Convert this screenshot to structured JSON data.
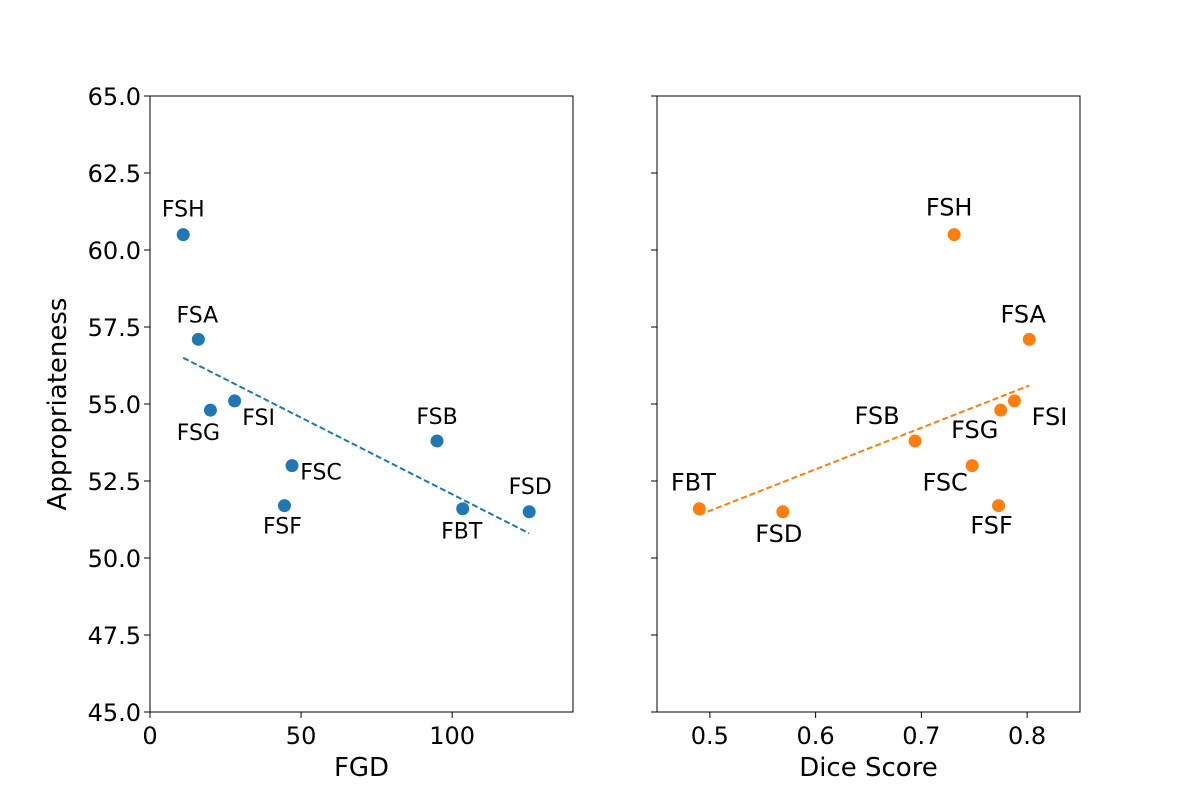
{
  "chart_data": [
    {
      "type": "scatter",
      "xlabel": "FGD",
      "ylabel": "Appropriateness",
      "xlim": [
        0,
        140
      ],
      "ylim": [
        45.0,
        65.0
      ],
      "xticks": [
        0,
        50,
        100
      ],
      "xtick_labels": [
        "0",
        "50",
        "100"
      ],
      "yticks": [
        45.0,
        47.5,
        50.0,
        52.5,
        55.0,
        57.5,
        60.0,
        62.5,
        65.0
      ],
      "ytick_labels": [
        "45.0",
        "47.5",
        "50.0",
        "52.5",
        "55.0",
        "57.5",
        "60.0",
        "62.5",
        "65.0"
      ],
      "color": "#1f77b4",
      "points": [
        {
          "label": "FSH",
          "x": 11,
          "y": 60.5
        },
        {
          "label": "FSA",
          "x": 16,
          "y": 57.1
        },
        {
          "label": "FSG",
          "x": 20,
          "y": 54.8
        },
        {
          "label": "FSI",
          "x": 28,
          "y": 55.1
        },
        {
          "label": "FSC",
          "x": 47,
          "y": 53.0
        },
        {
          "label": "FSF",
          "x": 44.5,
          "y": 51.7
        },
        {
          "label": "FSB",
          "x": 95,
          "y": 53.8
        },
        {
          "label": "FBT",
          "x": 103.5,
          "y": 51.6
        },
        {
          "label": "FSD",
          "x": 125.5,
          "y": 51.5
        }
      ],
      "trendline": {
        "x": [
          11,
          125.5
        ],
        "y": [
          56.5,
          50.8
        ],
        "style": "dashed"
      }
    },
    {
      "type": "scatter",
      "xlabel": "Dice Score",
      "ylabel": "",
      "xlim": [
        0.45,
        0.85
      ],
      "ylim": [
        45.0,
        65.0
      ],
      "xticks": [
        0.5,
        0.6,
        0.7,
        0.8
      ],
      "xtick_labels": [
        "0.5",
        "0.6",
        "0.7",
        "0.8"
      ],
      "yticks": [
        45.0,
        47.5,
        50.0,
        52.5,
        55.0,
        57.5,
        60.0,
        62.5,
        65.0
      ],
      "ytick_labels": [],
      "color": "#ff7f0e",
      "points": [
        {
          "label": "FBT",
          "x": 0.49,
          "y": 51.6
        },
        {
          "label": "FSD",
          "x": 0.569,
          "y": 51.5
        },
        {
          "label": "FSB",
          "x": 0.694,
          "y": 53.8
        },
        {
          "label": "FSH",
          "x": 0.731,
          "y": 60.5
        },
        {
          "label": "FSC",
          "x": 0.748,
          "y": 53.0
        },
        {
          "label": "FSF",
          "x": 0.773,
          "y": 51.7
        },
        {
          "label": "FSG",
          "x": 0.775,
          "y": 54.8
        },
        {
          "label": "FSI",
          "x": 0.788,
          "y": 55.1
        },
        {
          "label": "FSA",
          "x": 0.802,
          "y": 57.1
        }
      ],
      "trendline": {
        "x": [
          0.49,
          0.802
        ],
        "y": [
          51.4,
          55.6
        ],
        "style": "dashed"
      }
    }
  ]
}
